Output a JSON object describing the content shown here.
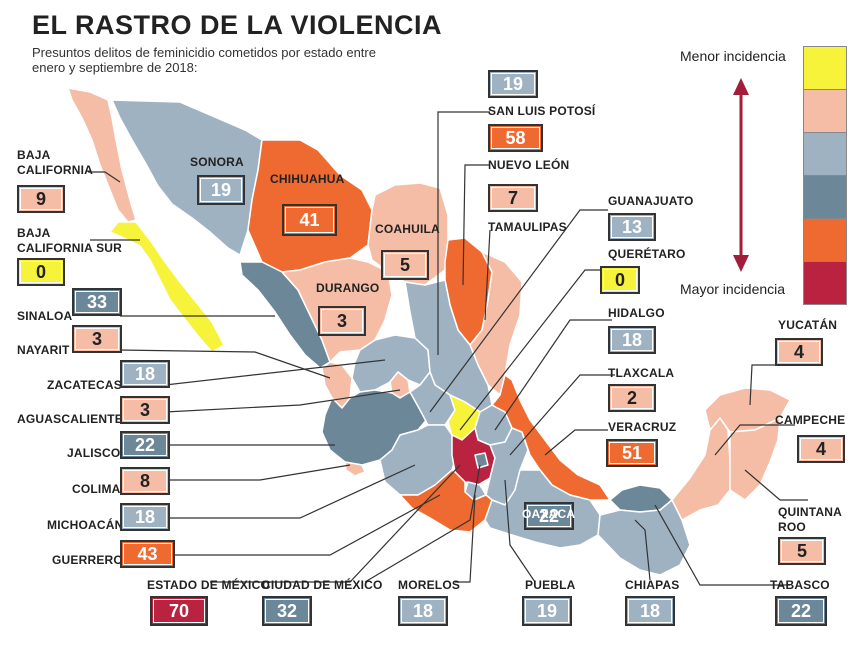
{
  "title": "EL RASTRO DE LA VIOLENCIA",
  "subtitle": "Presuntos delitos de feminicidio cometidos por estado entre enero y septiembre de 2018:",
  "legend": {
    "top_label": "Menor incidencia",
    "bottom_label": "Mayor incidencia",
    "colors": [
      "#f7f23a",
      "#f5bda6",
      "#9fb2c2",
      "#6c8798",
      "#ee6a30",
      "#b9233f"
    ],
    "arrow_color": "#a11d3a"
  },
  "palette": {
    "yellow": "#f7f23a",
    "pink": "#f5bda6",
    "lightgray": "#9fb2c2",
    "darkgray": "#6c8798",
    "orange": "#ee6a30",
    "red": "#b9233f"
  },
  "states": {
    "baja_california": {
      "name": "BAJA CALIFORNIA",
      "value": "9"
    },
    "baja_california_sur": {
      "name": "BAJA CALIFORNIA SUR",
      "value": "0"
    },
    "sonora": {
      "name": "SONORA",
      "value": "19"
    },
    "chihuahua": {
      "name": "CHIHUAHUA",
      "value": "41"
    },
    "coahuila": {
      "name": "COAHUILA",
      "value": "5"
    },
    "durango": {
      "name": "DURANGO",
      "value": "3"
    },
    "sinaloa": {
      "name": "SINALOA",
      "value": "33"
    },
    "nayarit": {
      "name": "NAYARIT",
      "value": "3"
    },
    "zacatecas": {
      "name": "ZACATECAS",
      "value": "18"
    },
    "aguascalientes": {
      "name": "AGUASCALIENTES",
      "value": "3"
    },
    "jalisco": {
      "name": "JALISCO",
      "value": "22"
    },
    "colima": {
      "name": "COLIMA",
      "value": "8"
    },
    "michoacan": {
      "name": "MICHOACÁN",
      "value": "18"
    },
    "guerrero": {
      "name": "GUERRERO",
      "value": "43"
    },
    "estado_de_mexico": {
      "name": "ESTADO DE MÉXICO",
      "value": "70"
    },
    "ciudad_de_mexico": {
      "name": "CIUDAD DE MÉXICO",
      "value": "32"
    },
    "morelos": {
      "name": "MORELOS",
      "value": "18"
    },
    "puebla": {
      "name": "PUEBLA",
      "value": "19"
    },
    "chiapas": {
      "name": "CHIAPAS",
      "value": "18"
    },
    "tabasco": {
      "name": "TABASCO",
      "value": "22"
    },
    "oaxaca": {
      "name": "OAXACA",
      "value": "22"
    },
    "san_luis_potosi": {
      "name": "SAN LUIS POTOSÍ",
      "value": "19"
    },
    "nuevo_leon": {
      "name": "NUEVO LEÓN",
      "value": "58"
    },
    "tamaulipas": {
      "name": "TAMAULIPAS",
      "value": "7"
    },
    "guanajuato": {
      "name": "GUANAJUATO",
      "value": "13"
    },
    "queretaro": {
      "name": "QUERÉTARO",
      "value": "0"
    },
    "hidalgo": {
      "name": "HIDALGO",
      "value": "18"
    },
    "tlaxcala": {
      "name": "TLAXCALA",
      "value": "2"
    },
    "veracruz": {
      "name": "VERACRUZ",
      "value": "51"
    },
    "yucatan": {
      "name": "YUCATÁN",
      "value": "4"
    },
    "campeche": {
      "name": "CAMPECHE",
      "value": "4"
    },
    "quintana_roo": {
      "name": "QUINTANA ROO",
      "value": "5"
    }
  }
}
